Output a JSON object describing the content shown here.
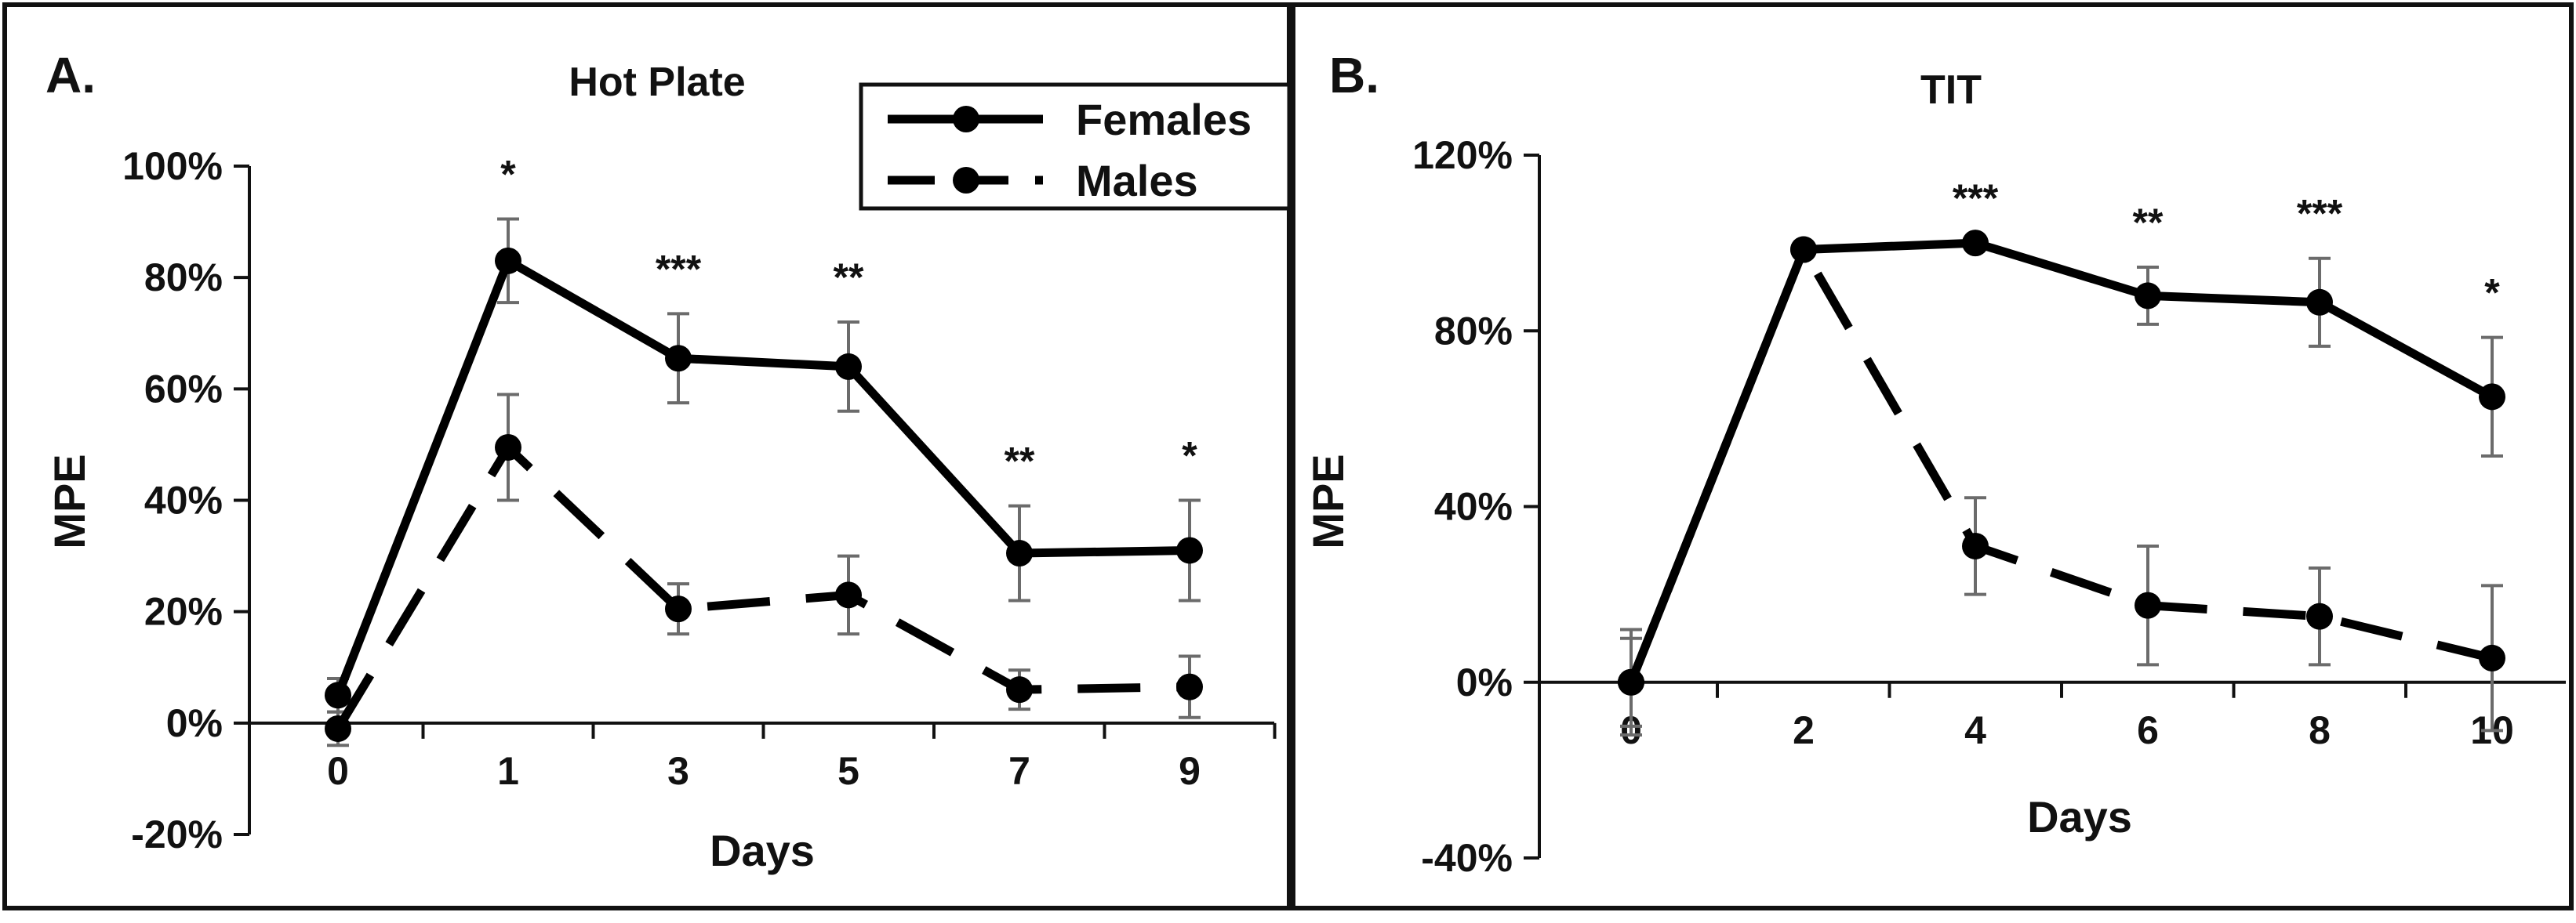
{
  "chart_data": [
    {
      "type": "line",
      "panel_label": "A.",
      "title": "Hot Plate",
      "xlabel": "Days",
      "ylabel": "MPE",
      "categories": [
        "0",
        "1",
        "3",
        "5",
        "7",
        "9"
      ],
      "ylim": [
        -0.2,
        1.0
      ],
      "yticks": [
        -0.2,
        0,
        0.2,
        0.4,
        0.6,
        0.8,
        1.0
      ],
      "ytick_labels": [
        "-20%",
        "0%",
        "20%",
        "40%",
        "60%",
        "80%",
        "100%"
      ],
      "series": [
        {
          "name": "Females",
          "style": "solid",
          "color": "#000000",
          "values": [
            0.05,
            0.83,
            0.655,
            0.64,
            0.305,
            0.31
          ],
          "errors": [
            0.03,
            0.075,
            0.08,
            0.08,
            0.085,
            0.09
          ]
        },
        {
          "name": "Males",
          "style": "dashed",
          "color": "#000000",
          "values": [
            -0.01,
            0.495,
            0.205,
            0.23,
            0.06,
            0.065
          ],
          "errors": [
            0.03,
            0.095,
            0.045,
            0.07,
            0.035,
            0.055
          ]
        }
      ],
      "significance": [
        "",
        "*",
        "***",
        "**",
        "**",
        "*"
      ],
      "legend": {
        "position": "top-right",
        "entries": [
          "Females",
          "Males"
        ]
      },
      "grid": false
    },
    {
      "type": "line",
      "panel_label": "B.",
      "title": "TIT",
      "xlabel": "Days",
      "ylabel": "MPE",
      "categories": [
        "0",
        "2",
        "4",
        "6",
        "8",
        "10"
      ],
      "ylim": [
        -0.4,
        1.2
      ],
      "yticks": [
        -0.4,
        0,
        0.4,
        0.8,
        1.2
      ],
      "ytick_labels": [
        "-40%",
        "0%",
        "40%",
        "80%",
        "120%"
      ],
      "series": [
        {
          "name": "Females",
          "style": "solid",
          "color": "#000000",
          "values": [
            0.0,
            0.985,
            1.0,
            0.88,
            0.865,
            0.65
          ],
          "errors": [
            0.12,
            0.0,
            0.0,
            0.065,
            0.1,
            0.135
          ]
        },
        {
          "name": "Males",
          "style": "dashed",
          "color": "#000000",
          "values": [
            0.0,
            0.985,
            0.31,
            0.175,
            0.15,
            0.055
          ],
          "errors": [
            0.1,
            0.0,
            0.11,
            0.135,
            0.11,
            0.165
          ]
        }
      ],
      "significance": [
        "",
        "",
        "***",
        "**",
        "***",
        "*"
      ],
      "grid": false
    }
  ]
}
